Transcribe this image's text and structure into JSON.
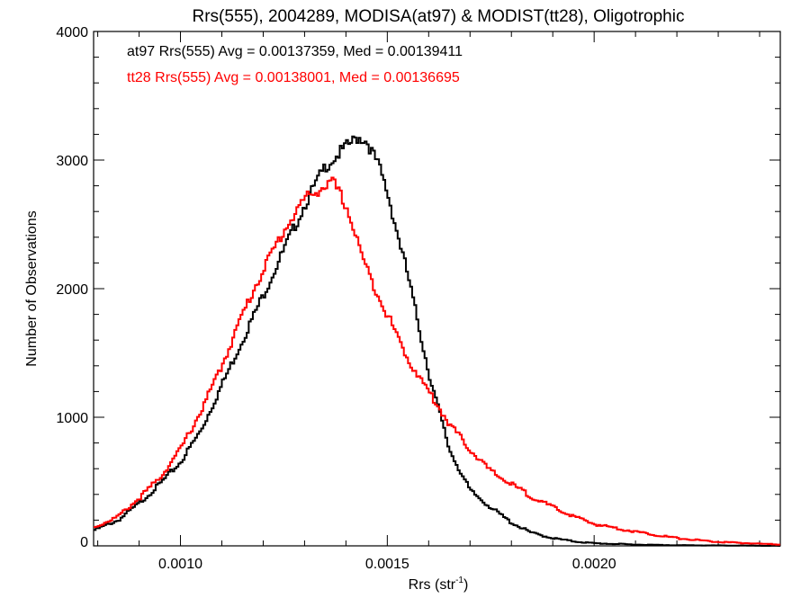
{
  "chart_data": {
    "type": "line",
    "title": "Rrs(555), 2004289, MODISA(at97) & MODIST(tt28), Oligotrophic",
    "xlabel_main": "Rrs (str",
    "xlabel_sup": "-1",
    "xlabel_close": ")",
    "ylabel": "Number of Observations",
    "xlim": [
      0.00079,
      0.00245
    ],
    "ylim": [
      0,
      4000
    ],
    "xticks": [
      0.001,
      0.0015,
      0.002
    ],
    "xtick_labels": [
      "0.0010",
      "0.0015",
      "0.0020"
    ],
    "yticks": [
      0,
      1000,
      2000,
      3000,
      4000
    ],
    "ytick_labels": [
      "0",
      "1000",
      "2000",
      "3000",
      "4000"
    ],
    "grid": false,
    "legend_placement": "top-left",
    "series": [
      {
        "legend_text": "at97 Rrs(555) Avg = 0.00137359, Med = 0.00139411",
        "color": "#000000",
        "stepped": true,
        "x": [
          0.00079,
          0.00085,
          0.0009,
          0.00095,
          0.001,
          0.00105,
          0.0011,
          0.00115,
          0.0012,
          0.00125,
          0.0013,
          0.00135,
          0.0014,
          0.00143,
          0.00145,
          0.00148,
          0.0015,
          0.00155,
          0.0016,
          0.00165,
          0.0017,
          0.00175,
          0.0018,
          0.00185,
          0.0019,
          0.00195,
          0.002,
          0.0021,
          0.0022,
          0.00245
        ],
        "y": [
          120,
          200,
          330,
          480,
          650,
          900,
          1250,
          1600,
          1950,
          2300,
          2650,
          2950,
          3100,
          3180,
          3150,
          2950,
          2750,
          2100,
          1350,
          750,
          430,
          300,
          180,
          100,
          60,
          35,
          20,
          10,
          5,
          0
        ]
      },
      {
        "legend_text": "tt28 Rrs(555) Avg = 0.00138001, Med = 0.00136695",
        "color": "#ff0000",
        "stepped": true,
        "x": [
          0.00079,
          0.00085,
          0.0009,
          0.00095,
          0.001,
          0.00105,
          0.0011,
          0.00115,
          0.0012,
          0.00125,
          0.0013,
          0.00135,
          0.00137,
          0.0014,
          0.00145,
          0.0015,
          0.00155,
          0.0016,
          0.00165,
          0.0017,
          0.00175,
          0.0018,
          0.00185,
          0.0019,
          0.00195,
          0.002,
          0.0021,
          0.0022,
          0.0023,
          0.00245
        ],
        "y": [
          140,
          230,
          370,
          530,
          750,
          1050,
          1400,
          1800,
          2150,
          2450,
          2700,
          2800,
          2820,
          2650,
          2150,
          1800,
          1450,
          1200,
          950,
          750,
          580,
          480,
          380,
          300,
          230,
          170,
          110,
          60,
          30,
          10
        ]
      }
    ]
  }
}
